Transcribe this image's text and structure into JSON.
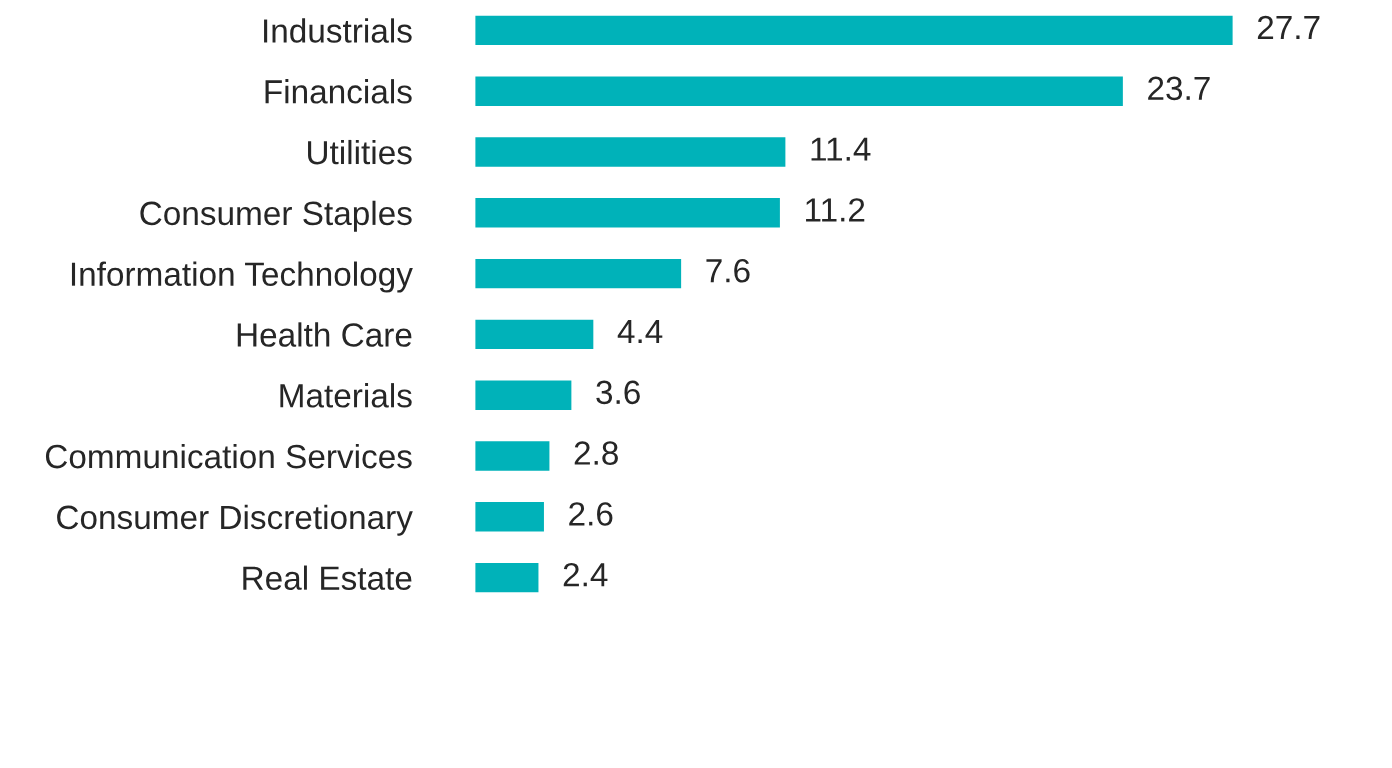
{
  "chart_data": {
    "type": "bar",
    "orientation": "horizontal",
    "data_labels": true,
    "categories": [
      "Industrials",
      "Financials",
      "Utilities",
      "Consumer Staples",
      "Information Technology",
      "Health Care",
      "Materials",
      "Communication Services",
      "Consumer Discretionary",
      "Real Estate"
    ],
    "values": [
      27.7,
      23.7,
      11.4,
      11.2,
      7.6,
      4.4,
      3.6,
      2.8,
      2.6,
      2.4
    ],
    "color": "#00b2b9",
    "grid": false,
    "legend": false
  }
}
